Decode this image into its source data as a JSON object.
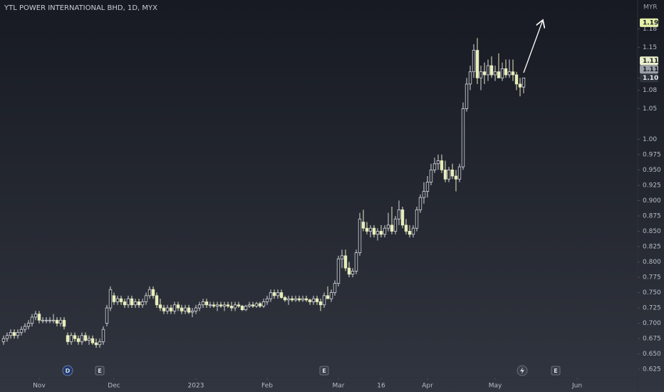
{
  "chart_data": {
    "type": "candlestick",
    "title": "YTL POWER INTERNATIONAL BHD, 1D, MYX",
    "currency": "MYR",
    "up_color": "#d6d8dc",
    "down_color": "#e6edbc",
    "ylim": [
      0.617,
      1.227
    ],
    "yticks": [
      0.625,
      {
        "value": 0.65,
        "label": "0.650"
      },
      0.675,
      {
        "value": 0.7,
        "label": "0.700"
      },
      0.725,
      {
        "value": 0.75,
        "label": "0.750"
      },
      0.775,
      {
        "value": 0.8,
        "label": "0.800"
      },
      0.825,
      {
        "value": 0.85,
        "label": "0.850"
      },
      0.875,
      {
        "value": 0.9,
        "label": "0.900"
      },
      0.925,
      {
        "value": 0.95,
        "label": "0.950"
      },
      0.975,
      {
        "value": 1,
        "label": "1.00"
      },
      1.05,
      1.08,
      {
        "value": 1.1,
        "label": "1.10"
      },
      1.15,
      1.18
    ],
    "xlim": [
      -1,
      178
    ],
    "xticks": [
      {
        "value": 10,
        "label": "Nov"
      },
      {
        "value": 31,
        "label": "Dec"
      },
      {
        "value": 54,
        "label": "2023"
      },
      {
        "value": 74,
        "label": "Feb"
      },
      {
        "value": 94,
        "label": "Mar"
      },
      {
        "value": 106,
        "label": "16"
      },
      {
        "value": 119,
        "label": "Apr"
      },
      {
        "value": 138,
        "label": "May"
      },
      {
        "value": 161,
        "label": "Jun"
      }
    ],
    "price_labels": [
      {
        "value": 1.19,
        "label": "1.19",
        "color": "#e3f0a8"
      },
      {
        "value": 1.113,
        "label": "1.11",
        "color": "#e8ecc8"
      },
      {
        "value": 1.106,
        "label": "1.11",
        "color": "#9a9ea6"
      },
      {
        "value": 1.1,
        "label": "1.10",
        "color": "#30343e"
      }
    ],
    "events": [
      {
        "label": "D",
        "x": 18,
        "color": "#1e3a6e"
      },
      {
        "label": "E",
        "x": 27,
        "color": "#3a3e48"
      },
      {
        "label": "E",
        "x": 90,
        "color": "#3a3e48"
      },
      {
        "label": "E",
        "x": 155,
        "color": "#3a3e48"
      }
    ],
    "ohlc": [
      [
        0.67,
        0.68,
        0.665,
        0.675
      ],
      [
        0.675,
        0.685,
        0.67,
        0.68
      ],
      [
        0.68,
        0.69,
        0.675,
        0.685
      ],
      [
        0.685,
        0.69,
        0.675,
        0.68
      ],
      [
        0.68,
        0.69,
        0.675,
        0.685
      ],
      [
        0.685,
        0.695,
        0.68,
        0.69
      ],
      [
        0.69,
        0.7,
        0.685,
        0.695
      ],
      [
        0.695,
        0.705,
        0.69,
        0.7
      ],
      [
        0.7,
        0.715,
        0.695,
        0.71
      ],
      [
        0.71,
        0.72,
        0.705,
        0.715
      ],
      [
        0.715,
        0.72,
        0.7,
        0.705
      ],
      [
        0.705,
        0.71,
        0.7,
        0.705
      ],
      [
        0.705,
        0.71,
        0.7,
        0.705
      ],
      [
        0.705,
        0.71,
        0.7,
        0.705
      ],
      [
        0.705,
        0.715,
        0.7,
        0.705
      ],
      [
        0.705,
        0.71,
        0.695,
        0.7
      ],
      [
        0.7,
        0.71,
        0.695,
        0.705
      ],
      [
        0.705,
        0.71,
        0.69,
        0.695
      ],
      [
        0.68,
        0.685,
        0.665,
        0.67
      ],
      [
        0.67,
        0.685,
        0.665,
        0.68
      ],
      [
        0.68,
        0.685,
        0.67,
        0.675
      ],
      [
        0.675,
        0.68,
        0.665,
        0.67
      ],
      [
        0.67,
        0.685,
        0.665,
        0.68
      ],
      [
        0.68,
        0.685,
        0.67,
        0.672
      ],
      [
        0.672,
        0.68,
        0.665,
        0.675
      ],
      [
        0.675,
        0.68,
        0.665,
        0.668
      ],
      [
        0.668,
        0.675,
        0.66,
        0.665
      ],
      [
        0.665,
        0.675,
        0.66,
        0.67
      ],
      [
        0.67,
        0.695,
        0.665,
        0.69
      ],
      [
        0.7,
        0.73,
        0.695,
        0.725
      ],
      [
        0.725,
        0.76,
        0.72,
        0.755
      ],
      [
        0.745,
        0.75,
        0.73,
        0.735
      ],
      [
        0.735,
        0.745,
        0.73,
        0.74
      ],
      [
        0.74,
        0.745,
        0.73,
        0.735
      ],
      [
        0.735,
        0.74,
        0.725,
        0.73
      ],
      [
        0.73,
        0.745,
        0.725,
        0.74
      ],
      [
        0.74,
        0.745,
        0.725,
        0.73
      ],
      [
        0.73,
        0.74,
        0.725,
        0.735
      ],
      [
        0.735,
        0.74,
        0.725,
        0.73
      ],
      [
        0.73,
        0.74,
        0.725,
        0.735
      ],
      [
        0.735,
        0.75,
        0.73,
        0.745
      ],
      [
        0.745,
        0.76,
        0.74,
        0.755
      ],
      [
        0.755,
        0.76,
        0.74,
        0.745
      ],
      [
        0.745,
        0.75,
        0.725,
        0.73
      ],
      [
        0.73,
        0.74,
        0.72,
        0.725
      ],
      [
        0.725,
        0.73,
        0.715,
        0.72
      ],
      [
        0.72,
        0.73,
        0.715,
        0.725
      ],
      [
        0.725,
        0.73,
        0.715,
        0.72
      ],
      [
        0.72,
        0.735,
        0.715,
        0.73
      ],
      [
        0.73,
        0.735,
        0.72,
        0.725
      ],
      [
        0.725,
        0.73,
        0.715,
        0.72
      ],
      [
        0.72,
        0.73,
        0.715,
        0.725
      ],
      [
        0.725,
        0.73,
        0.715,
        0.718
      ],
      [
        0.718,
        0.725,
        0.71,
        0.72
      ],
      [
        0.72,
        0.73,
        0.715,
        0.725
      ],
      [
        0.725,
        0.735,
        0.72,
        0.73
      ],
      [
        0.73,
        0.74,
        0.725,
        0.735
      ],
      [
        0.735,
        0.74,
        0.725,
        0.73
      ],
      [
        0.73,
        0.735,
        0.725,
        0.73
      ],
      [
        0.73,
        0.735,
        0.725,
        0.728
      ],
      [
        0.728,
        0.735,
        0.72,
        0.73
      ],
      [
        0.73,
        0.735,
        0.725,
        0.728
      ],
      [
        0.728,
        0.735,
        0.72,
        0.73
      ],
      [
        0.73,
        0.735,
        0.725,
        0.728
      ],
      [
        0.728,
        0.735,
        0.72,
        0.725
      ],
      [
        0.725,
        0.735,
        0.72,
        0.73
      ],
      [
        0.73,
        0.735,
        0.725,
        0.728
      ],
      [
        0.728,
        0.73,
        0.72,
        0.722
      ],
      [
        0.722,
        0.73,
        0.72,
        0.728
      ],
      [
        0.728,
        0.735,
        0.725,
        0.73
      ],
      [
        0.73,
        0.735,
        0.725,
        0.728
      ],
      [
        0.728,
        0.735,
        0.725,
        0.732
      ],
      [
        0.732,
        0.735,
        0.725,
        0.728
      ],
      [
        0.728,
        0.74,
        0.725,
        0.735
      ],
      [
        0.735,
        0.745,
        0.73,
        0.74
      ],
      [
        0.74,
        0.755,
        0.735,
        0.75
      ],
      [
        0.75,
        0.755,
        0.74,
        0.745
      ],
      [
        0.745,
        0.755,
        0.74,
        0.75
      ],
      [
        0.75,
        0.755,
        0.74,
        0.742
      ],
      [
        0.742,
        0.745,
        0.735,
        0.738
      ],
      [
        0.738,
        0.745,
        0.73,
        0.74
      ],
      [
        0.74,
        0.745,
        0.735,
        0.738
      ],
      [
        0.738,
        0.745,
        0.735,
        0.74
      ],
      [
        0.74,
        0.745,
        0.735,
        0.738
      ],
      [
        0.738,
        0.745,
        0.735,
        0.74
      ],
      [
        0.74,
        0.745,
        0.735,
        0.738
      ],
      [
        0.738,
        0.74,
        0.73,
        0.735
      ],
      [
        0.735,
        0.745,
        0.73,
        0.74
      ],
      [
        0.74,
        0.745,
        0.73,
        0.735
      ],
      [
        0.735,
        0.74,
        0.72,
        0.73
      ],
      [
        0.73,
        0.75,
        0.725,
        0.745
      ],
      [
        0.745,
        0.76,
        0.74,
        0.74
      ],
      [
        0.74,
        0.755,
        0.735,
        0.75
      ],
      [
        0.75,
        0.77,
        0.745,
        0.765
      ],
      [
        0.765,
        0.81,
        0.76,
        0.805
      ],
      [
        0.805,
        0.82,
        0.79,
        0.81
      ],
      [
        0.81,
        0.82,
        0.785,
        0.79
      ],
      [
        0.79,
        0.8,
        0.775,
        0.78
      ],
      [
        0.78,
        0.79,
        0.775,
        0.785
      ],
      [
        0.785,
        0.82,
        0.78,
        0.815
      ],
      [
        0.815,
        0.88,
        0.81,
        0.87
      ],
      [
        0.865,
        0.885,
        0.85,
        0.855
      ],
      [
        0.855,
        0.865,
        0.845,
        0.85
      ],
      [
        0.85,
        0.86,
        0.84,
        0.855
      ],
      [
        0.855,
        0.86,
        0.84,
        0.845
      ],
      [
        0.845,
        0.855,
        0.835,
        0.85
      ],
      [
        0.85,
        0.86,
        0.84,
        0.845
      ],
      [
        0.845,
        0.86,
        0.84,
        0.855
      ],
      [
        0.855,
        0.88,
        0.85,
        0.86
      ],
      [
        0.86,
        0.89,
        0.845,
        0.85
      ],
      [
        0.85,
        0.875,
        0.845,
        0.87
      ],
      [
        0.87,
        0.9,
        0.86,
        0.885
      ],
      [
        0.885,
        0.89,
        0.855,
        0.86
      ],
      [
        0.86,
        0.87,
        0.845,
        0.85
      ],
      [
        0.85,
        0.86,
        0.84,
        0.845
      ],
      [
        0.845,
        0.86,
        0.84,
        0.855
      ],
      [
        0.855,
        0.89,
        0.85,
        0.885
      ],
      [
        0.885,
        0.91,
        0.88,
        0.905
      ],
      [
        0.905,
        0.93,
        0.895,
        0.915
      ],
      [
        0.915,
        0.94,
        0.905,
        0.93
      ],
      [
        0.93,
        0.96,
        0.925,
        0.95
      ],
      [
        0.95,
        0.97,
        0.945,
        0.96
      ],
      [
        0.96,
        0.975,
        0.95,
        0.965
      ],
      [
        0.965,
        0.975,
        0.945,
        0.95
      ],
      [
        0.95,
        0.965,
        0.93,
        0.935
      ],
      [
        0.935,
        0.955,
        0.93,
        0.95
      ],
      [
        0.95,
        0.96,
        0.935,
        0.94
      ],
      [
        0.94,
        0.95,
        0.915,
        0.935
      ],
      [
        0.935,
        0.96,
        0.93,
        0.955
      ],
      [
        0.955,
        1.06,
        0.95,
        1.05
      ],
      [
        1.05,
        1.1,
        1.045,
        1.09
      ],
      [
        1.09,
        1.12,
        1.08,
        1.11
      ],
      [
        1.11,
        1.155,
        1.1,
        1.145
      ],
      [
        1.145,
        1.165,
        1.09,
        1.1
      ],
      [
        1.1,
        1.12,
        1.08,
        1.11
      ],
      [
        1.11,
        1.125,
        1.09,
        1.105
      ],
      [
        1.105,
        1.13,
        1.095,
        1.12
      ],
      [
        1.12,
        1.135,
        1.1,
        1.105
      ],
      [
        1.105,
        1.12,
        1.095,
        1.11
      ],
      [
        1.11,
        1.14,
        1.1,
        1.1
      ],
      [
        1.1,
        1.125,
        1.095,
        1.115
      ],
      [
        1.115,
        1.13,
        1.1,
        1.105
      ],
      [
        1.105,
        1.13,
        1.1,
        1.11
      ],
      [
        1.11,
        1.13,
        1.095,
        1.105
      ],
      [
        1.105,
        1.11,
        1.08,
        1.09
      ],
      [
        1.09,
        1.1,
        1.07,
        1.085
      ],
      [
        1.085,
        1.1,
        1.075,
        1.1
      ]
    ]
  }
}
